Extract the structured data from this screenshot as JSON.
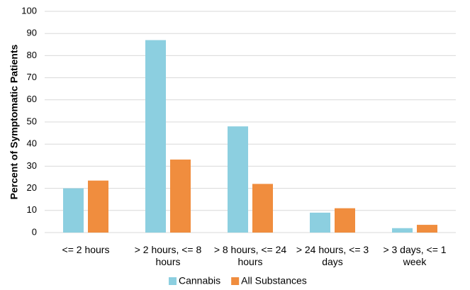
{
  "chart_data": {
    "type": "bar",
    "title": "",
    "xlabel": "",
    "ylabel": "Percent of Symptomatic Patients",
    "ylim": [
      0,
      100
    ],
    "yticks": [
      0,
      10,
      20,
      30,
      40,
      50,
      60,
      70,
      80,
      90,
      100
    ],
    "grid": true,
    "legend_position": "bottom",
    "categories": [
      [
        "<= 2 hours"
      ],
      [
        "> 2 hours, <= 8",
        "hours"
      ],
      [
        "> 8 hours, <= 24",
        "hours"
      ],
      [
        "> 24 hours, <= 3",
        "days"
      ],
      [
        "> 3 days, <= 1",
        "week"
      ]
    ],
    "series": [
      {
        "name": "Cannabis",
        "color": "#8ccfe0",
        "values": [
          20,
          87,
          48,
          9,
          2
        ]
      },
      {
        "name": "All Substances",
        "color": "#f08d3e",
        "values": [
          23.5,
          33,
          22,
          11,
          3.5
        ]
      }
    ]
  }
}
